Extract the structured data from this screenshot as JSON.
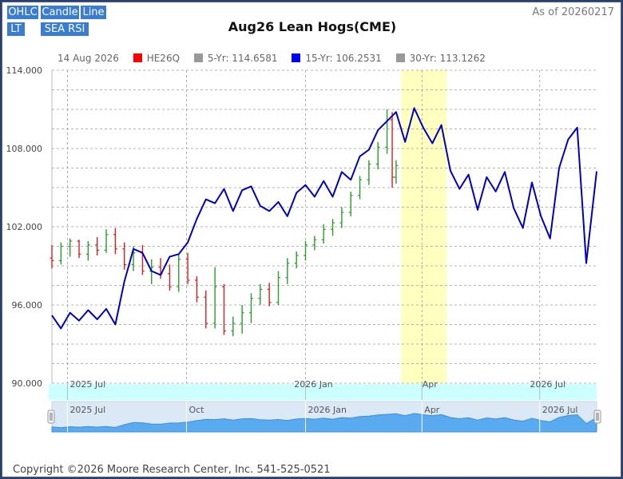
{
  "toolbar": {
    "buttons": [
      "OHLC",
      "Candle",
      "Line",
      "LT",
      "SEA RSI"
    ]
  },
  "header": {
    "title": "Aug26 Lean Hogs(CME)",
    "as_of": "As of 20260217"
  },
  "legend": {
    "date": "14 Aug 2026",
    "items": [
      {
        "label": "HE26Q",
        "color": "#ff0000"
      },
      {
        "label": "5-Yr: 114.6581",
        "color": "#999999"
      },
      {
        "label": "15-Yr: 106.2531",
        "color": "#0000ff"
      },
      {
        "label": "30-Yr: 113.1262",
        "color": "#999999"
      }
    ]
  },
  "footer": {
    "copyright": "Copyright ©2026 Moore Research Center, Inc. 541-525-0521"
  },
  "colors": {
    "accent_button": "#3a7ccf",
    "seasonal_line": "#0000c0",
    "up_candle": "#2e9a2e",
    "down_candle": "#d62020",
    "highlight_band": "#ffffc0",
    "navigator_fill": "#5aaaf0",
    "xaxis_band": "#ccffff"
  },
  "chart_data": {
    "type": "line",
    "title": "Aug26 Lean Hogs(CME)",
    "ylim": [
      90,
      114
    ],
    "yticks": [
      "90.000",
      "96.000",
      "102.000",
      "108.000",
      "114.000"
    ],
    "xticks": [
      "2025 Jul",
      "2026 Jan",
      "Apr",
      "2026 Jul"
    ],
    "navigator_ticks": [
      "2025 Jul",
      "Oct",
      "2026 Jan",
      "Apr",
      "2026 Jul"
    ],
    "x_range": [
      "2025-06-19",
      "2026-08-14"
    ],
    "highlight_window": [
      "2026-03-16",
      "2026-04-20"
    ],
    "grid": true,
    "series": [
      {
        "name": "HE26Q",
        "type": "ohlc",
        "points": [
          {
            "x": "2025-06-19",
            "o": 99.6,
            "h": 100.6,
            "l": 98.8,
            "c": 99.4
          },
          {
            "x": "2025-06-26",
            "o": 99.4,
            "h": 100.8,
            "l": 99.1,
            "c": 100.5
          },
          {
            "x": "2025-07-03",
            "o": 100.5,
            "h": 101.1,
            "l": 99.7,
            "c": 100.9
          },
          {
            "x": "2025-07-10",
            "o": 100.9,
            "h": 101.0,
            "l": 99.6,
            "c": 99.9
          },
          {
            "x": "2025-07-17",
            "o": 99.9,
            "h": 100.9,
            "l": 99.4,
            "c": 100.6
          },
          {
            "x": "2025-07-24",
            "o": 100.6,
            "h": 101.2,
            "l": 99.8,
            "c": 100.2
          },
          {
            "x": "2025-07-31",
            "o": 100.2,
            "h": 101.8,
            "l": 100.0,
            "c": 101.4
          },
          {
            "x": "2025-08-07",
            "o": 101.4,
            "h": 101.9,
            "l": 99.9,
            "c": 100.3
          },
          {
            "x": "2025-08-14",
            "o": 100.3,
            "h": 100.8,
            "l": 98.7,
            "c": 99.1
          },
          {
            "x": "2025-08-21",
            "o": 99.1,
            "h": 100.5,
            "l": 98.6,
            "c": 100.0
          },
          {
            "x": "2025-08-28",
            "o": 100.0,
            "h": 100.6,
            "l": 98.3,
            "c": 98.6
          },
          {
            "x": "2025-09-04",
            "o": 98.6,
            "h": 99.5,
            "l": 97.6,
            "c": 98.9
          },
          {
            "x": "2025-09-11",
            "o": 98.9,
            "h": 99.6,
            "l": 98.0,
            "c": 98.4
          },
          {
            "x": "2025-09-18",
            "o": 98.4,
            "h": 99.1,
            "l": 97.1,
            "c": 97.4
          },
          {
            "x": "2025-09-25",
            "o": 97.4,
            "h": 99.9,
            "l": 97.0,
            "c": 99.5
          },
          {
            "x": "2025-10-02",
            "o": 99.5,
            "h": 100.0,
            "l": 97.6,
            "c": 97.9
          },
          {
            "x": "2025-10-09",
            "o": 97.9,
            "h": 98.2,
            "l": 96.2,
            "c": 96.6
          },
          {
            "x": "2025-10-16",
            "o": 96.6,
            "h": 97.1,
            "l": 94.2,
            "c": 94.6
          },
          {
            "x": "2025-10-23",
            "o": 94.6,
            "h": 98.9,
            "l": 94.2,
            "c": 97.4
          },
          {
            "x": "2025-10-30",
            "o": 97.4,
            "h": 97.6,
            "l": 93.7,
            "c": 94.0
          },
          {
            "x": "2025-11-06",
            "o": 94.0,
            "h": 95.1,
            "l": 93.6,
            "c": 94.6
          },
          {
            "x": "2025-11-13",
            "o": 94.6,
            "h": 96.0,
            "l": 93.8,
            "c": 95.4
          },
          {
            "x": "2025-11-20",
            "o": 95.4,
            "h": 96.9,
            "l": 94.6,
            "c": 96.5
          },
          {
            "x": "2025-11-27",
            "o": 96.5,
            "h": 97.6,
            "l": 96.0,
            "c": 97.2
          },
          {
            "x": "2025-12-04",
            "o": 97.2,
            "h": 97.7,
            "l": 95.9,
            "c": 96.2
          },
          {
            "x": "2025-12-11",
            "o": 96.2,
            "h": 98.6,
            "l": 96.0,
            "c": 98.1
          },
          {
            "x": "2025-12-18",
            "o": 98.1,
            "h": 99.6,
            "l": 97.6,
            "c": 99.2
          },
          {
            "x": "2025-12-25",
            "o": 99.2,
            "h": 100.1,
            "l": 98.8,
            "c": 99.8
          },
          {
            "x": "2026-01-01",
            "o": 99.8,
            "h": 100.9,
            "l": 99.4,
            "c": 100.6
          },
          {
            "x": "2026-01-08",
            "o": 100.6,
            "h": 101.3,
            "l": 100.2,
            "c": 101.0
          },
          {
            "x": "2026-01-15",
            "o": 101.0,
            "h": 102.2,
            "l": 100.7,
            "c": 101.8
          },
          {
            "x": "2026-01-22",
            "o": 101.8,
            "h": 102.6,
            "l": 101.3,
            "c": 102.3
          },
          {
            "x": "2026-01-29",
            "o": 102.3,
            "h": 103.5,
            "l": 101.9,
            "c": 103.1
          },
          {
            "x": "2026-02-05",
            "o": 103.1,
            "h": 104.7,
            "l": 102.8,
            "c": 104.4
          },
          {
            "x": "2026-02-12",
            "o": 104.4,
            "h": 105.9,
            "l": 104.1,
            "c": 105.6
          },
          {
            "x": "2026-02-19",
            "o": 105.6,
            "h": 107.1,
            "l": 105.2,
            "c": 106.8
          },
          {
            "x": "2026-02-26",
            "o": 106.8,
            "h": 108.5,
            "l": 106.4,
            "c": 108.1
          },
          {
            "x": "2026-03-05",
            "o": 108.1,
            "h": 111.0,
            "l": 107.6,
            "c": 110.2
          },
          {
            "x": "2026-03-09",
            "o": 110.2,
            "h": 110.8,
            "l": 105.0,
            "c": 105.8
          },
          {
            "x": "2026-03-12",
            "o": 105.8,
            "h": 107.1,
            "l": 105.3,
            "c": 106.7
          }
        ]
      },
      {
        "name": "15-Yr: 106.2531",
        "type": "line",
        "points": [
          {
            "x": "2025-06-19",
            "y": 95.2
          },
          {
            "x": "2025-06-26",
            "y": 94.2
          },
          {
            "x": "2025-07-03",
            "y": 95.4
          },
          {
            "x": "2025-07-10",
            "y": 94.8
          },
          {
            "x": "2025-07-17",
            "y": 95.6
          },
          {
            "x": "2025-07-24",
            "y": 94.9
          },
          {
            "x": "2025-07-31",
            "y": 95.7
          },
          {
            "x": "2025-08-07",
            "y": 94.5
          },
          {
            "x": "2025-08-14",
            "y": 97.8
          },
          {
            "x": "2025-08-21",
            "y": 100.3
          },
          {
            "x": "2025-08-28",
            "y": 100.0
          },
          {
            "x": "2025-09-04",
            "y": 98.6
          },
          {
            "x": "2025-09-11",
            "y": 98.3
          },
          {
            "x": "2025-09-18",
            "y": 99.7
          },
          {
            "x": "2025-09-25",
            "y": 99.9
          },
          {
            "x": "2025-10-02",
            "y": 100.8
          },
          {
            "x": "2025-10-09",
            "y": 102.6
          },
          {
            "x": "2025-10-16",
            "y": 104.1
          },
          {
            "x": "2025-10-23",
            "y": 103.8
          },
          {
            "x": "2025-10-30",
            "y": 104.9
          },
          {
            "x": "2025-11-06",
            "y": 103.2
          },
          {
            "x": "2025-11-13",
            "y": 104.8
          },
          {
            "x": "2025-11-20",
            "y": 105.1
          },
          {
            "x": "2025-11-27",
            "y": 103.6
          },
          {
            "x": "2025-12-04",
            "y": 103.2
          },
          {
            "x": "2025-12-11",
            "y": 103.9
          },
          {
            "x": "2025-12-18",
            "y": 102.8
          },
          {
            "x": "2025-12-25",
            "y": 104.6
          },
          {
            "x": "2026-01-01",
            "y": 105.2
          },
          {
            "x": "2026-01-08",
            "y": 104.3
          },
          {
            "x": "2026-01-15",
            "y": 105.5
          },
          {
            "x": "2026-01-22",
            "y": 104.3
          },
          {
            "x": "2026-01-29",
            "y": 106.2
          },
          {
            "x": "2026-02-05",
            "y": 105.6
          },
          {
            "x": "2026-02-12",
            "y": 107.4
          },
          {
            "x": "2026-02-19",
            "y": 107.9
          },
          {
            "x": "2026-02-26",
            "y": 109.4
          },
          {
            "x": "2026-03-05",
            "y": 110.1
          },
          {
            "x": "2026-03-12",
            "y": 110.8
          },
          {
            "x": "2026-03-19",
            "y": 108.5
          },
          {
            "x": "2026-03-26",
            "y": 111.1
          },
          {
            "x": "2026-04-02",
            "y": 109.6
          },
          {
            "x": "2026-04-09",
            "y": 108.4
          },
          {
            "x": "2026-04-16",
            "y": 109.8
          },
          {
            "x": "2026-04-23",
            "y": 106.3
          },
          {
            "x": "2026-04-30",
            "y": 104.9
          },
          {
            "x": "2026-05-07",
            "y": 106.0
          },
          {
            "x": "2026-05-14",
            "y": 103.3
          },
          {
            "x": "2026-05-21",
            "y": 105.8
          },
          {
            "x": "2026-05-28",
            "y": 104.7
          },
          {
            "x": "2026-06-04",
            "y": 106.2
          },
          {
            "x": "2026-06-11",
            "y": 103.4
          },
          {
            "x": "2026-06-18",
            "y": 101.9
          },
          {
            "x": "2026-06-25",
            "y": 105.4
          },
          {
            "x": "2026-07-02",
            "y": 102.8
          },
          {
            "x": "2026-07-09",
            "y": 101.1
          },
          {
            "x": "2026-07-16",
            "y": 106.5
          },
          {
            "x": "2026-07-23",
            "y": 108.7
          },
          {
            "x": "2026-07-30",
            "y": 109.6
          },
          {
            "x": "2026-08-06",
            "y": 99.2
          },
          {
            "x": "2026-08-14",
            "y": 106.25
          }
        ]
      }
    ]
  }
}
